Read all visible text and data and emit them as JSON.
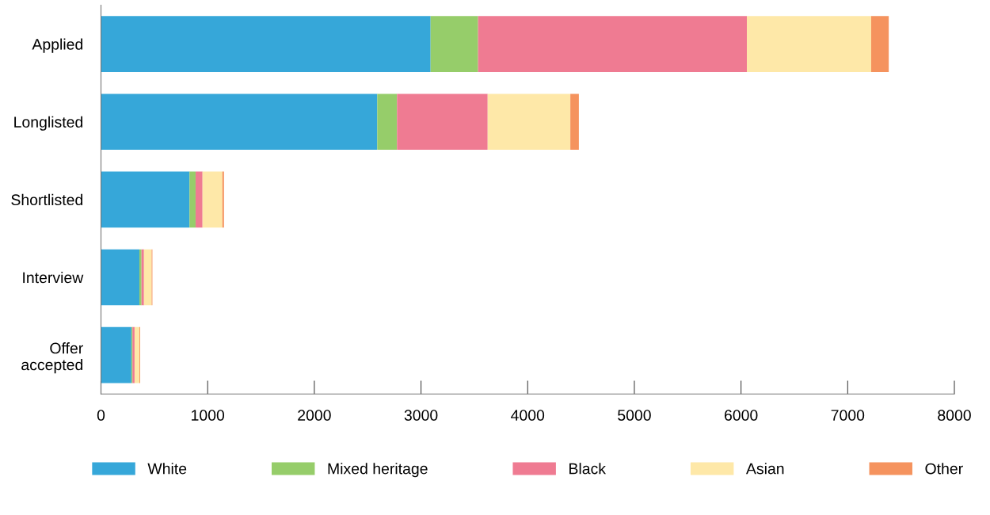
{
  "chart_data": {
    "type": "bar",
    "orientation": "horizontal",
    "stacked": true,
    "categories": [
      "Applied",
      "Longlisted",
      "Shortlisted",
      "Interview",
      "Offer\naccepted"
    ],
    "series": [
      {
        "name": "White",
        "color": "#36a7d9",
        "values": [
          3090,
          2590,
          830,
          360,
          285
        ]
      },
      {
        "name": "Mixed heritage",
        "color": "#96cd6a",
        "values": [
          445,
          185,
          57,
          20,
          10
        ]
      },
      {
        "name": "Black",
        "color": "#ef7b92",
        "values": [
          2520,
          850,
          65,
          23,
          20
        ]
      },
      {
        "name": "Asian",
        "color": "#fee8a8",
        "values": [
          1165,
          775,
          186,
          72,
          45
        ]
      },
      {
        "name": "Other",
        "color": "#f5935e",
        "values": [
          165,
          80,
          15,
          7,
          7
        ]
      }
    ],
    "xlim": [
      0,
      8000
    ],
    "xticks": [
      0,
      1000,
      2000,
      3000,
      4000,
      5000,
      6000,
      7000,
      8000
    ],
    "grid": false,
    "legend": "bottom"
  }
}
